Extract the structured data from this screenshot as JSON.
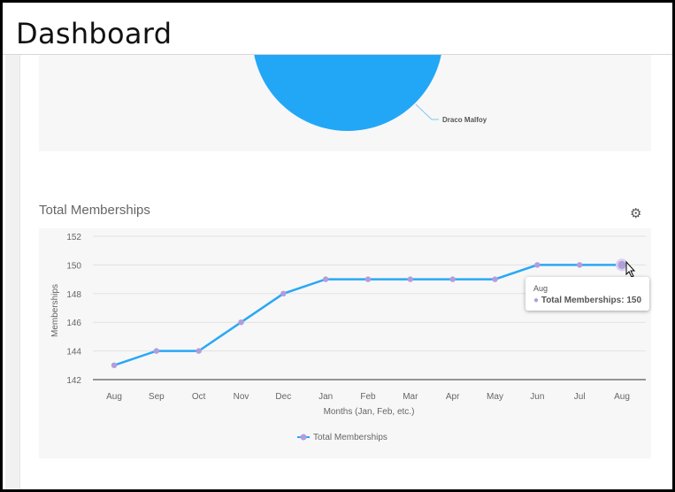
{
  "header": {
    "title": "Dashboard"
  },
  "pie": {
    "label": "Draco Malfoy",
    "color": "#22a7f7"
  },
  "section": {
    "title": "Total Memberships",
    "settings_icon": "gear-icon"
  },
  "tooltip": {
    "category": "Aug",
    "series": "Total Memberships",
    "value": "150",
    "text": "Total Memberships: 150"
  },
  "chart_data": {
    "type": "line",
    "categories": [
      "Aug",
      "Sep",
      "Oct",
      "Nov",
      "Dec",
      "Jan",
      "Feb",
      "Mar",
      "Apr",
      "May",
      "Jun",
      "Jul",
      "Aug"
    ],
    "series": [
      {
        "name": "Total Memberships",
        "values": [
          143,
          144,
          144,
          146,
          148,
          149,
          149,
          149,
          149,
          149,
          150,
          150,
          150
        ],
        "color": "#29a8f6",
        "marker_color": "#b39ddb"
      }
    ],
    "xlabel": "Months (Jan, Feb, etc.)",
    "ylabel": "Memberships",
    "ylim": [
      142,
      152
    ],
    "yticks": [
      142,
      144,
      146,
      148,
      150,
      152
    ],
    "grid": true,
    "legend": "bottom"
  }
}
